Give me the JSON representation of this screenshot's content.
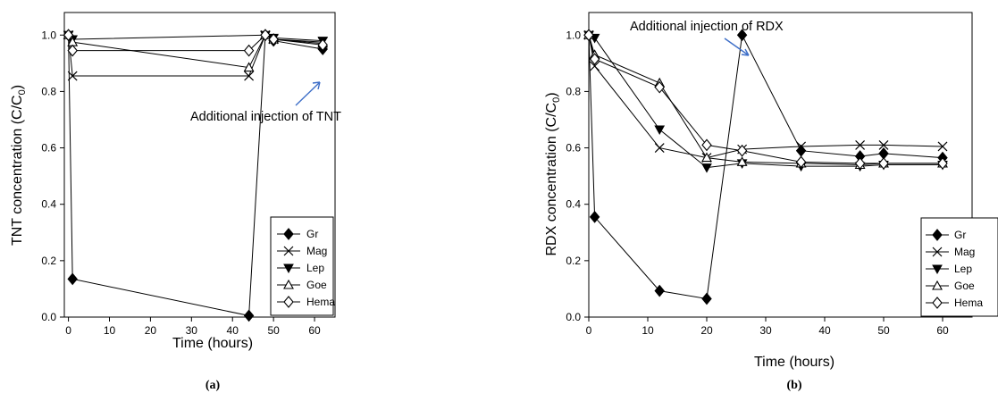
{
  "chart_data": [
    {
      "type": "line",
      "ylabel_main": "TNT concentration (C/C",
      "ylabel_sub": "0",
      "ylabel_tail": ")",
      "xlabel": "Time (hours)",
      "panel_label": "(a)",
      "xlim": [
        -1,
        65
      ],
      "ylim": [
        0,
        1.08
      ],
      "xticks": [
        0,
        10,
        20,
        30,
        40,
        50,
        60
      ],
      "xtick_labels": [
        "0",
        "10",
        "20",
        "30",
        "40",
        "50",
        "60"
      ],
      "yticks": [
        0,
        0.2,
        0.4,
        0.6,
        0.8,
        1.0
      ],
      "ytick_labels": [
        "0.0",
        "0.2",
        "0.4",
        "0.6",
        "0.8",
        "1.0"
      ],
      "legend_position": "bottom-right",
      "grid": false,
      "annotation": {
        "text": "Additional injection of TNT",
        "arrow_to": [
          48,
          0.95
        ]
      },
      "series": [
        {
          "name": "Gr",
          "marker": "diamond-filled",
          "x": [
            0,
            1,
            44,
            48,
            50,
            62
          ],
          "y": [
            1.0,
            0.135,
            0.005,
            1.0,
            0.98,
            0.95
          ]
        },
        {
          "name": "Mag",
          "marker": "x",
          "x": [
            0,
            1,
            44,
            48,
            50,
            62
          ],
          "y": [
            1.0,
            0.855,
            0.855,
            1.0,
            0.985,
            0.975
          ]
        },
        {
          "name": "Lep",
          "marker": "triangle-down",
          "x": [
            0,
            1,
            48,
            50,
            62
          ],
          "y": [
            1.0,
            0.985,
            1.0,
            0.99,
            0.98
          ]
        },
        {
          "name": "Goe",
          "marker": "triangle-up-open",
          "x": [
            0,
            1,
            44,
            48,
            50,
            62
          ],
          "y": [
            1.0,
            0.975,
            0.885,
            1.0,
            0.985,
            0.97
          ]
        },
        {
          "name": "Hema",
          "marker": "diamond-open",
          "x": [
            0,
            1,
            44,
            48,
            50,
            62
          ],
          "y": [
            1.0,
            0.945,
            0.945,
            1.0,
            0.985,
            0.965
          ]
        }
      ]
    },
    {
      "type": "line",
      "ylabel_main": "RDX concentration (C/C",
      "ylabel_sub": "0",
      "ylabel_tail": ")",
      "xlabel": "Time (hours)",
      "panel_label": "(b)",
      "xlim": [
        0,
        65
      ],
      "ylim": [
        0,
        1.08
      ],
      "xticks": [
        0,
        10,
        20,
        30,
        40,
        50,
        60
      ],
      "xtick_labels": [
        "0",
        "10",
        "20",
        "30",
        "40",
        "50",
        "60"
      ],
      "yticks": [
        0,
        0.2,
        0.4,
        0.6,
        0.8,
        1.0
      ],
      "ytick_labels": [
        "0.0",
        "0.2",
        "0.4",
        "0.6",
        "0.8",
        "1.0"
      ],
      "legend_position": "bottom-right",
      "grid": false,
      "annotation": {
        "text": "Additional injection of RDX",
        "arrow_to": [
          25.5,
          0.99
        ]
      },
      "series": [
        {
          "name": "Gr",
          "marker": "diamond-filled",
          "x": [
            0,
            1,
            12,
            20,
            26,
            36,
            46,
            50,
            60
          ],
          "y": [
            1.0,
            0.355,
            0.093,
            0.065,
            1.0,
            0.59,
            0.57,
            0.58,
            0.565
          ]
        },
        {
          "name": "Mag",
          "marker": "x",
          "x": [
            0,
            1,
            12,
            20,
            26,
            36,
            46,
            50,
            60
          ],
          "y": [
            1.0,
            0.89,
            0.6,
            0.565,
            0.595,
            0.605,
            0.61,
            0.61,
            0.605
          ]
        },
        {
          "name": "Lep",
          "marker": "triangle-down",
          "x": [
            0,
            1,
            12,
            20,
            26,
            36,
            46,
            50,
            60
          ],
          "y": [
            1.0,
            0.99,
            0.665,
            0.53,
            0.545,
            0.535,
            0.535,
            0.54,
            0.54
          ]
        },
        {
          "name": "Goe",
          "marker": "triangle-up-open",
          "x": [
            0,
            1,
            12,
            20,
            26,
            36,
            46,
            50,
            60
          ],
          "y": [
            1.0,
            0.93,
            0.83,
            0.565,
            0.55,
            0.545,
            0.54,
            0.545,
            0.545
          ]
        },
        {
          "name": "Hema",
          "marker": "diamond-open",
          "x": [
            0,
            1,
            12,
            20,
            26,
            36,
            46,
            50,
            60
          ],
          "y": [
            1.0,
            0.915,
            0.815,
            0.61,
            0.59,
            0.55,
            0.545,
            0.545,
            0.545
          ]
        }
      ]
    }
  ]
}
